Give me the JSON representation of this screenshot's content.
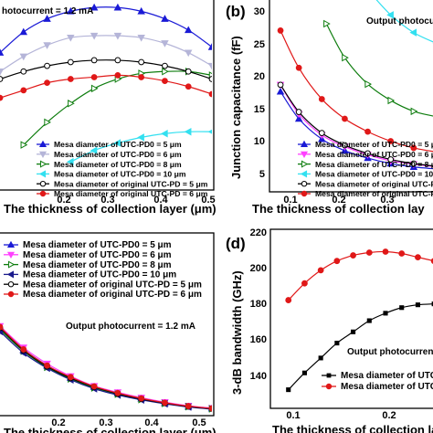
{
  "chart_data": [
    {
      "panel": "a",
      "type": "line",
      "xlabel": "The thickness of collection layer (μm)",
      "ylabel": "",
      "xlim": [
        0.05,
        0.5
      ],
      "ylim": [
        0,
        100
      ],
      "xticks": [
        0.1,
        0.2,
        0.3,
        0.4,
        0.5
      ],
      "annotation": "hotocurrent = 1.2 mA",
      "legend_position": "bottom",
      "series": [
        {
          "name": "Mesa diameter of UTC-PD0 = 5 μm",
          "color": "#1a1ad6",
          "marker": "triangle-up",
          "x": [
            0.05,
            0.1,
            0.15,
            0.2,
            0.25,
            0.3,
            0.35,
            0.4,
            0.45,
            0.5
          ],
          "y": [
            72,
            83,
            90,
            94,
            96,
            96,
            94,
            90,
            84,
            75
          ]
        },
        {
          "name": "Mesa diameter of UTC-PD0 = 6 μm",
          "color": "#b5b5d8",
          "marker": "triangle-down",
          "x": [
            0.05,
            0.1,
            0.15,
            0.2,
            0.25,
            0.3,
            0.35,
            0.4,
            0.45,
            0.5
          ],
          "y": [
            62,
            70,
            76,
            80,
            81,
            81,
            80,
            77,
            72,
            65
          ]
        },
        {
          "name": "Mesa diameter of UTC-PD0 = 8 μm",
          "color": "#0e7d0e",
          "marker": "triangle-right",
          "x": [
            0.1,
            0.15,
            0.2,
            0.25,
            0.3,
            0.35,
            0.4,
            0.45,
            0.5
          ],
          "y": [
            23,
            35,
            45,
            53,
            58,
            61,
            62,
            62,
            60
          ]
        },
        {
          "name": "Mesa diameter of UTC-PD0 = 10 μm",
          "color": "#33e0f0",
          "marker": "triangle-left",
          "x": [
            0.2,
            0.25,
            0.3,
            0.35,
            0.4,
            0.45,
            0.5
          ],
          "y": [
            14,
            20,
            24,
            27,
            29,
            30,
            30
          ]
        },
        {
          "name": "Mesa diameter of original UTC-PD = 5 μm",
          "color": "#000000",
          "marker": "circle-open",
          "x": [
            0.05,
            0.1,
            0.15,
            0.2,
            0.25,
            0.3,
            0.35,
            0.4,
            0.45,
            0.5
          ],
          "y": [
            58,
            62,
            65,
            67,
            68,
            68,
            67,
            65,
            62,
            58
          ]
        },
        {
          "name": "Mesa diameter of original UTC-PD = 6 μm",
          "color": "#e01818",
          "marker": "circle",
          "x": [
            0.05,
            0.1,
            0.15,
            0.2,
            0.25,
            0.3,
            0.35,
            0.4,
            0.45,
            0.5
          ],
          "y": [
            48,
            52,
            56,
            58,
            59,
            60,
            59,
            57,
            54,
            50
          ]
        }
      ]
    },
    {
      "panel": "b",
      "type": "line",
      "xlabel": "The thickness of collection lay",
      "ylabel": "Junction capacitance (fF)",
      "xlim": [
        0.04,
        0.41
      ],
      "ylim": [
        4,
        32
      ],
      "xticks": [
        0.1,
        0.2,
        0.3
      ],
      "yticks": [
        5,
        10,
        15,
        20,
        25,
        30
      ],
      "annotation": "Output photocu",
      "legend_position": "bottom",
      "series": [
        {
          "name": "Mesa diameter of UTC-PD0 = 5 μm",
          "color": "#1a1ad6",
          "marker": "triangle-up",
          "x": [
            0.06,
            0.1,
            0.15,
            0.2,
            0.25,
            0.3,
            0.35,
            0.4
          ],
          "y": [
            18.5,
            14.5,
            11.5,
            9.8,
            8.7,
            7.9,
            7.4,
            7.1
          ]
        },
        {
          "name": "Mesa diameter of UTC-PD0 = 6 μm",
          "color": "#ff40ff",
          "marker": "triangle-down",
          "x": [
            0.06,
            0.1,
            0.15,
            0.2,
            0.25,
            0.3,
            0.35,
            0.4
          ],
          "y": [
            19.5,
            15.2,
            12.1,
            10.4,
            9.2,
            8.3,
            7.8,
            7.4
          ]
        },
        {
          "name": "Mesa diameter of UTC-PD0 = 8 μm",
          "color": "#0e7d0e",
          "marker": "triangle-right",
          "x": [
            0.16,
            0.2,
            0.25,
            0.3,
            0.35,
            0.4
          ],
          "y": [
            28.5,
            23.5,
            19.6,
            17.2,
            15.6,
            14.8
          ]
        },
        {
          "name": "Mesa diameter of UTC-PD0 = 10 μm",
          "color": "#33e0f0",
          "marker": "triangle-left",
          "x": [
            0.25,
            0.3,
            0.35,
            0.4
          ],
          "y": [
            33.5,
            29.8,
            27.2,
            25.6
          ]
        },
        {
          "name": "Mesa diameter of original UTC-PD = 5 μm",
          "color": "#000000",
          "marker": "circle-open",
          "x": [
            0.06,
            0.1,
            0.15,
            0.2,
            0.25,
            0.3,
            0.35,
            0.4
          ],
          "y": [
            19.5,
            15.5,
            12.4,
            10.6,
            9.4,
            8.5,
            7.9,
            7.5
          ]
        },
        {
          "name": "Mesa diameter of original UTC-PD = 6 μm",
          "color": "#e01818",
          "marker": "circle",
          "x": [
            0.06,
            0.1,
            0.15,
            0.2,
            0.25,
            0.3,
            0.35,
            0.4
          ],
          "y": [
            27.5,
            22.0,
            17.4,
            14.5,
            12.6,
            11.2,
            10.2,
            9.6
          ]
        }
      ]
    },
    {
      "panel": "c",
      "type": "line",
      "xlabel": "The thickness of collection layer (μm)",
      "ylabel": "",
      "xlim": [
        0.05,
        0.5
      ],
      "ylim": [
        0,
        100
      ],
      "xticks": [
        0.1,
        0.2,
        0.3,
        0.4,
        0.5
      ],
      "annotation": "Output photocurrent = 1.2 mA",
      "legend_position": "top",
      "series": [
        {
          "name": "Mesa diameter of UTC-PD0 = 5 μm",
          "color": "#1a1ad6",
          "marker": "triangle-up",
          "x": [
            0.05,
            0.1,
            0.15,
            0.2,
            0.25,
            0.3,
            0.35,
            0.4,
            0.45,
            0.5
          ],
          "y": [
            48,
            36,
            27,
            20,
            15,
            11.5,
            8.5,
            6,
            4,
            3
          ]
        },
        {
          "name": "Mesa diameter of UTC-PD0 = 6 μm",
          "color": "#ff40ff",
          "marker": "triangle-down",
          "x": [
            0.05,
            0.1,
            0.15,
            0.2,
            0.25,
            0.3,
            0.35,
            0.4,
            0.45,
            0.5
          ],
          "y": [
            49,
            37,
            28,
            21,
            15.5,
            12,
            9,
            6.5,
            4.5,
            3.2
          ]
        },
        {
          "name": "Mesa diameter of UTC-PD0 = 8 μm",
          "color": "#0e7d0e",
          "marker": "triangle-right",
          "x": [
            0.05,
            0.1,
            0.15,
            0.2,
            0.25,
            0.3,
            0.35,
            0.4,
            0.45,
            0.5
          ],
          "y": [
            47,
            35,
            26,
            19.5,
            14.5,
            11,
            8,
            5.8,
            4,
            2.8
          ]
        },
        {
          "name": "Mesa diameter of UTC-PD0 = 10 μm",
          "color": "#1a1a8c",
          "marker": "triangle-left",
          "x": [
            0.05,
            0.1,
            0.15,
            0.2,
            0.25,
            0.3,
            0.35,
            0.4,
            0.45,
            0.5
          ],
          "y": [
            46,
            34,
            25.5,
            19,
            14,
            10.5,
            7.8,
            5.6,
            3.8,
            2.6
          ]
        },
        {
          "name": "Mesa diameter of original UTC-PD = 5 μm",
          "color": "#000000",
          "marker": "circle-open",
          "x": [
            0.05,
            0.1,
            0.15,
            0.2,
            0.25,
            0.3,
            0.35,
            0.4,
            0.45,
            0.5
          ],
          "y": [
            48,
            35.5,
            26.5,
            20,
            15,
            11.2,
            8.3,
            6,
            4.1,
            2.9
          ]
        },
        {
          "name": "Mesa diameter of original UTC-PD = 6 μm",
          "color": "#e01818",
          "marker": "circle",
          "x": [
            0.05,
            0.1,
            0.15,
            0.2,
            0.25,
            0.3,
            0.35,
            0.4,
            0.45,
            0.5
          ],
          "y": [
            48.5,
            36,
            27,
            20.5,
            15.3,
            11.6,
            8.6,
            6.2,
            4.3,
            3
          ]
        }
      ]
    },
    {
      "panel": "d",
      "type": "line",
      "xlabel": "The thickness of collection lay",
      "ylabel": "3-dB bandwidth (GHz)",
      "xlim": [
        0.04,
        0.25
      ],
      "ylim": [
        128,
        222
      ],
      "xticks": [
        0.1,
        0.2
      ],
      "yticks": [
        140,
        160,
        180,
        200,
        220
      ],
      "annotation": "Output photocurrent",
      "legend_position": "bottom-right",
      "series": [
        {
          "name": "Mesa diameter of UTC",
          "color": "#000000",
          "marker": "square",
          "x": [
            0.06,
            0.08,
            0.1,
            0.12,
            0.14,
            0.16,
            0.18,
            0.2,
            0.22,
            0.24
          ],
          "y": [
            137,
            146,
            154,
            162,
            168,
            174,
            178,
            181,
            182.5,
            183
          ]
        },
        {
          "name": "Mesa diameter of UTC",
          "color": "#e01818",
          "marker": "circle",
          "x": [
            0.06,
            0.08,
            0.1,
            0.12,
            0.14,
            0.16,
            0.18,
            0.2,
            0.22,
            0.24
          ],
          "y": [
            185,
            194,
            201,
            206,
            209,
            210.5,
            211,
            210,
            208,
            206
          ]
        }
      ]
    }
  ],
  "panel_labels": {
    "b": "(b)",
    "d": "(d)"
  },
  "tick_labels": {
    "a": [
      "0.2",
      "0.3",
      "0.4",
      "0.5"
    ],
    "b_x": [
      "0.1",
      "0.2",
      "0.3"
    ],
    "b_y": [
      "5",
      "10",
      "15",
      "20",
      "25",
      "30"
    ],
    "c": [
      "0.2",
      "0.3",
      "0.4",
      "0.5"
    ],
    "d_x": [
      "0.1",
      "0.2"
    ],
    "d_y": [
      "140",
      "160",
      "180",
      "200",
      "220"
    ]
  },
  "legend_labels_a": [
    "Mesa diameter of UTC-PD0 = 5 μm",
    "Mesa diameter of UTC-PD0 = 6 μm",
    "Mesa diameter of UTC-PD0 = 8 μm",
    "Mesa diameter of UTC-PD0 = 10 μm",
    "Mesa diameter of original UTC-PD = 5 μm",
    "Mesa diameter of original UTC-PD = 6 μm"
  ],
  "legend_labels_b": [
    "Mesa diameter of UTC-PD0 = 5 μm",
    "Mesa diameter of UTC-PD0 = 6 μm",
    "Mesa diameter of UTC-PD0 = 8 μm",
    "Mesa diameter of UTC-PD0 = 10 μm",
    "Mesa diameter of original UTC-PD = 5 μm",
    "Mesa diameter of original UTC-PD = 6 μm"
  ],
  "legend_labels_c": [
    "Mesa diameter of UTC-PD0 = 5 μm",
    "Mesa diameter of UTC-PD0 = 6 μm",
    "Mesa diameter of UTC-PD0 = 8 μm",
    "Mesa diameter of UTC-PD0 = 10 μm",
    "Mesa diameter of original UTC-PD = 5 μm",
    "Mesa diameter of original UTC-PD = 6 μm"
  ],
  "legend_labels_d": [
    "Mesa diameter of UTC",
    "Mesa diameter of UTC"
  ]
}
